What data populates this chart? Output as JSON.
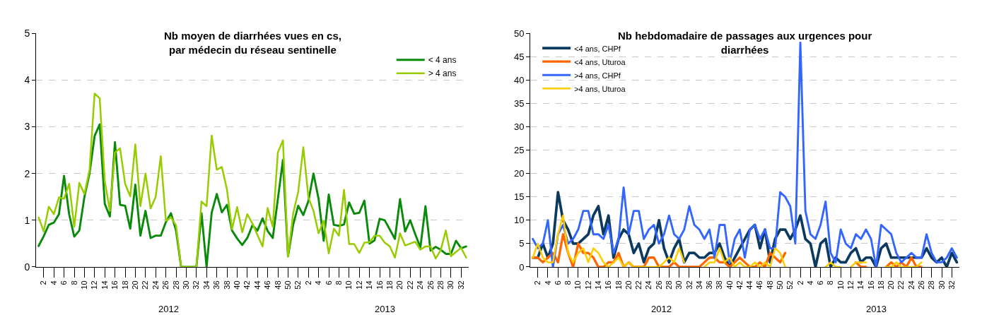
{
  "chart_data": [
    {
      "type": "line",
      "title": "Nb moyen de diarrhées vues en cs,\npar médecin du réseau sentinelle",
      "categories": [
        null,
        "2",
        null,
        "4",
        null,
        "6",
        null,
        "8",
        null,
        "10",
        null,
        "12",
        null,
        "14",
        null,
        "16",
        null,
        "18",
        null,
        "20",
        null,
        "22",
        null,
        "24",
        null,
        "26",
        null,
        "28",
        null,
        "30",
        null,
        "32",
        null,
        "34",
        null,
        "36",
        null,
        "38",
        null,
        "40",
        null,
        "42",
        null,
        "44",
        null,
        "46",
        null,
        "48",
        null,
        "50",
        null,
        "52",
        null,
        "2",
        null,
        "4",
        null,
        "6",
        null,
        "8",
        null,
        "10",
        null,
        "12",
        null,
        "14",
        null,
        "16",
        null,
        "18",
        null,
        "20",
        null,
        "22",
        null,
        "24",
        null,
        "26",
        null,
        "28",
        null,
        "30",
        null,
        "32",
        null
      ],
      "series": [
        {
          "name": "< 4 ans",
          "color": "#0a8a0a",
          "values": [
            0.45,
            0.66,
            0.9,
            0.95,
            1.13,
            1.95,
            1.13,
            0.65,
            0.78,
            1.5,
            2.0,
            2.8,
            3.05,
            1.35,
            1.08,
            2.67,
            1.33,
            1.31,
            0.82,
            1.76,
            0.67,
            1.2,
            0.62,
            0.67,
            0.67,
            0.96,
            1.15,
            0.78,
            0,
            0,
            0,
            0,
            1.15,
            0,
            1.16,
            1.56,
            1.17,
            1.33,
            0.78,
            0.61,
            0.47,
            0.62,
            0.89,
            0.78,
            1.04,
            0.77,
            0.62,
            1.45,
            2.29,
            0.23,
            0.9,
            1.31,
            1.11,
            1.41,
            2.0,
            1.46,
            0.56,
            1.55,
            0.9,
            0.88,
            0.91,
            1.38,
            1.14,
            1.16,
            1.42,
            0.5,
            0.57,
            1.03,
            1.0,
            0.8,
            0.6,
            1.45,
            0.76,
            1.0,
            0.7,
            0.42,
            1.3,
            0.35,
            0.43,
            0.37,
            0.28,
            0.28,
            0.56,
            0.4,
            0.44
          ]
        },
        {
          "name": "> 4 ans",
          "color": "#99cc00",
          "values": [
            1.06,
            0.76,
            1.29,
            1.13,
            1.49,
            1.46,
            1.78,
            0.86,
            1.8,
            1.56,
            2.07,
            3.71,
            3.61,
            1.84,
            1.2,
            2.45,
            2.54,
            1.78,
            1.51,
            2.62,
            1.3,
            2.0,
            1.25,
            1.5,
            2.37,
            0.99,
            1.06,
            0.89,
            0,
            0,
            0,
            0,
            1.4,
            1.3,
            2.81,
            2.08,
            2.14,
            1.66,
            0.81,
            1.28,
            0.74,
            1.13,
            0.93,
            0.68,
            0.44,
            1.26,
            0.86,
            2.45,
            2.71,
            0.22,
            1.14,
            1.61,
            2.56,
            1.49,
            1.2,
            0.72,
            0.99,
            0.29,
            0.82,
            0.67,
            1.65,
            0.49,
            0.49,
            0.3,
            0.52,
            0.53,
            0.67,
            0.67,
            0.52,
            0.44,
            0.2,
            0.72,
            0.46,
            0.5,
            0.54,
            0.37,
            0.44,
            0.44,
            0.18,
            0.36,
            0.78,
            0.23,
            0.32,
            0.41,
            0.2
          ]
        }
      ],
      "ylim": [
        0,
        5
      ],
      "yticks": [
        0,
        1,
        2,
        3,
        4,
        5
      ],
      "grid": "y",
      "legend": "top right",
      "annotations": [
        "2012",
        "2013"
      ]
    },
    {
      "type": "line",
      "title": "Nb hebdomadaire de passages aux urgences pour\ndiarrhées",
      "categories": [
        null,
        "2",
        null,
        "4",
        null,
        "6",
        null,
        "8",
        null,
        "10",
        null,
        "12",
        null,
        "14",
        null,
        "16",
        null,
        "18",
        null,
        "20",
        null,
        "22",
        null,
        "24",
        null,
        "26",
        null,
        "28",
        null,
        "30",
        null,
        "32",
        null,
        "34",
        null,
        "36",
        null,
        "38",
        null,
        "40",
        null,
        "42",
        null,
        "44",
        null,
        "46",
        null,
        "48",
        null,
        "50",
        null,
        "52",
        null,
        "2",
        null,
        "4",
        null,
        "6",
        null,
        "8",
        null,
        "10",
        null,
        "12",
        null,
        "14",
        null,
        "16",
        null,
        "18",
        null,
        "20",
        null,
        "22",
        null,
        "24",
        null,
        "26",
        null,
        "28",
        null,
        "30",
        null,
        "32",
        null
      ],
      "series": [
        {
          "name": "<4 ans, CHPf",
          "color": "#0b3a5e",
          "values": [
            2,
            2,
            5,
            2,
            5,
            16,
            10,
            8,
            5,
            5,
            6,
            7,
            11,
            13,
            7,
            11,
            2,
            6,
            8,
            7,
            3,
            5,
            1,
            4,
            5,
            10,
            4,
            1,
            4,
            6,
            1,
            3,
            3,
            2,
            2,
            3,
            3,
            5,
            2,
            0,
            2,
            4,
            6,
            8,
            9,
            4,
            8,
            1,
            6,
            8,
            8,
            6,
            8,
            11,
            6,
            5,
            0,
            5,
            6,
            0,
            2,
            1,
            1,
            3,
            4,
            1,
            2,
            2,
            0,
            4,
            5,
            2,
            2,
            2,
            2,
            2,
            2,
            2,
            4,
            2,
            1,
            2,
            0,
            3,
            1
          ]
        },
        {
          "name": "<4 ans, Uturoa",
          "color": "#ff6600",
          "values": [
            2,
            2,
            1,
            2,
            3,
            1,
            7,
            3,
            0,
            5,
            3,
            3,
            2,
            0,
            0,
            1,
            1,
            3,
            0,
            1,
            0,
            0,
            0,
            2,
            2,
            0,
            0,
            0,
            1,
            0,
            0,
            0,
            0,
            0,
            1,
            2,
            2,
            1,
            1,
            0,
            1,
            2,
            1,
            0,
            0,
            1,
            0,
            3,
            2,
            1,
            3,
            null,
            null,
            null,
            null,
            null,
            null,
            null,
            null,
            null,
            null,
            null,
            null,
            null,
            1,
            0,
            0,
            null,
            null,
            null,
            0,
            1,
            0,
            1,
            0,
            2,
            0,
            0,
            null,
            null,
            null,
            null,
            null,
            null,
            null
          ]
        },
        {
          "name": ">4 ans, CHPf",
          "color": "#3366ff",
          "values": [
            6,
            4,
            5,
            10,
            0,
            7,
            9,
            5,
            6,
            8,
            12,
            12,
            7,
            7,
            6,
            9,
            3,
            6,
            17,
            7,
            12,
            12,
            6,
            8,
            9,
            5,
            7,
            11,
            7,
            6,
            8,
            13,
            9,
            8,
            6,
            8,
            2,
            9,
            9,
            1,
            6,
            8,
            2,
            8,
            9,
            6,
            8,
            4,
            4,
            16,
            15,
            13,
            5,
            48,
            12,
            7,
            6,
            9,
            14,
            3,
            1,
            8,
            5,
            4,
            7,
            6,
            8,
            6,
            0,
            9,
            8,
            7,
            3,
            1,
            2,
            3,
            2,
            2,
            7,
            3,
            1,
            1,
            2,
            4,
            2
          ]
        },
        {
          "name": ">4 ans, Uturoa",
          "color": "#ffcc00",
          "values": [
            2,
            5,
            2,
            1,
            1,
            7,
            11,
            3,
            1,
            3,
            4,
            1,
            4,
            3,
            1,
            0,
            1,
            2,
            0,
            1,
            0,
            0,
            0,
            0,
            0,
            0,
            1,
            2,
            1,
            4,
            1,
            null,
            null,
            null,
            0,
            1,
            1,
            4,
            1,
            2,
            0,
            1,
            0,
            0,
            1,
            0,
            1,
            0,
            4,
            3,
            0,
            null,
            null,
            null,
            null,
            null,
            null,
            null,
            0,
            1,
            0,
            0,
            null,
            0,
            1,
            1,
            1,
            null,
            null,
            null,
            0,
            0,
            1,
            0,
            0,
            0,
            0,
            1,
            null,
            null,
            null,
            null,
            null,
            null,
            null
          ]
        }
      ],
      "ylim": [
        0,
        50
      ],
      "yticks": [
        0,
        5,
        10,
        15,
        20,
        25,
        30,
        35,
        40,
        45,
        50
      ],
      "grid": "y",
      "legend": "top left",
      "annotations": [
        "2012",
        "2013"
      ]
    }
  ]
}
